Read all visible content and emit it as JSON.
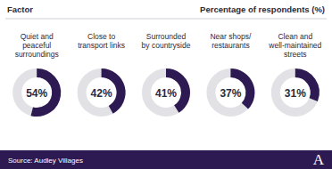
{
  "chart_data": {
    "type": "donut",
    "x_label": "Factor",
    "y_label": "Percentage of respondents (%)",
    "categories": [
      "Quiet and\npeaceful\nsurroundings",
      "Close to\ntransport links",
      "Surrounded\nby countryside",
      "Near shops/\nrestaurants",
      "Clean and\nwell-maintained\nstreets"
    ],
    "values": [
      54,
      42,
      41,
      37,
      31
    ],
    "value_labels": [
      "54%",
      "42%",
      "41%",
      "37%",
      "31%"
    ],
    "ylim": [
      0,
      100
    ],
    "data_labels": true,
    "color": "#2e1a52",
    "annotations": [
      "Source: Audley Villages",
      "A"
    ]
  }
}
